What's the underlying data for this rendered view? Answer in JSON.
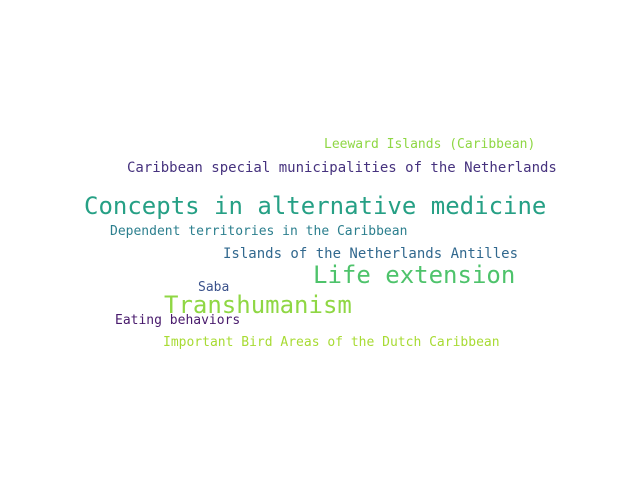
{
  "words": [
    {
      "text": "Leeward Islands (Caribbean)",
      "color": "#8fd744"
    },
    {
      "text": "Caribbean special municipalities of the Netherlands",
      "color": "#46327e"
    },
    {
      "text": "Concepts in alternative medicine",
      "color": "#26a085"
    },
    {
      "text": "Dependent territories in the Caribbean",
      "color": "#2c7f8e"
    },
    {
      "text": "Islands of the Netherlands Antilles",
      "color": "#31688e"
    },
    {
      "text": "Life extension",
      "color": "#4ec36b"
    },
    {
      "text": "Saba",
      "color": "#3b528b"
    },
    {
      "text": "Transhumanism",
      "color": "#8fd744"
    },
    {
      "text": "Eating behaviors",
      "color": "#481a6c"
    },
    {
      "text": "Important Bird Areas of the Dutch Caribbean",
      "color": "#a8db34"
    }
  ]
}
